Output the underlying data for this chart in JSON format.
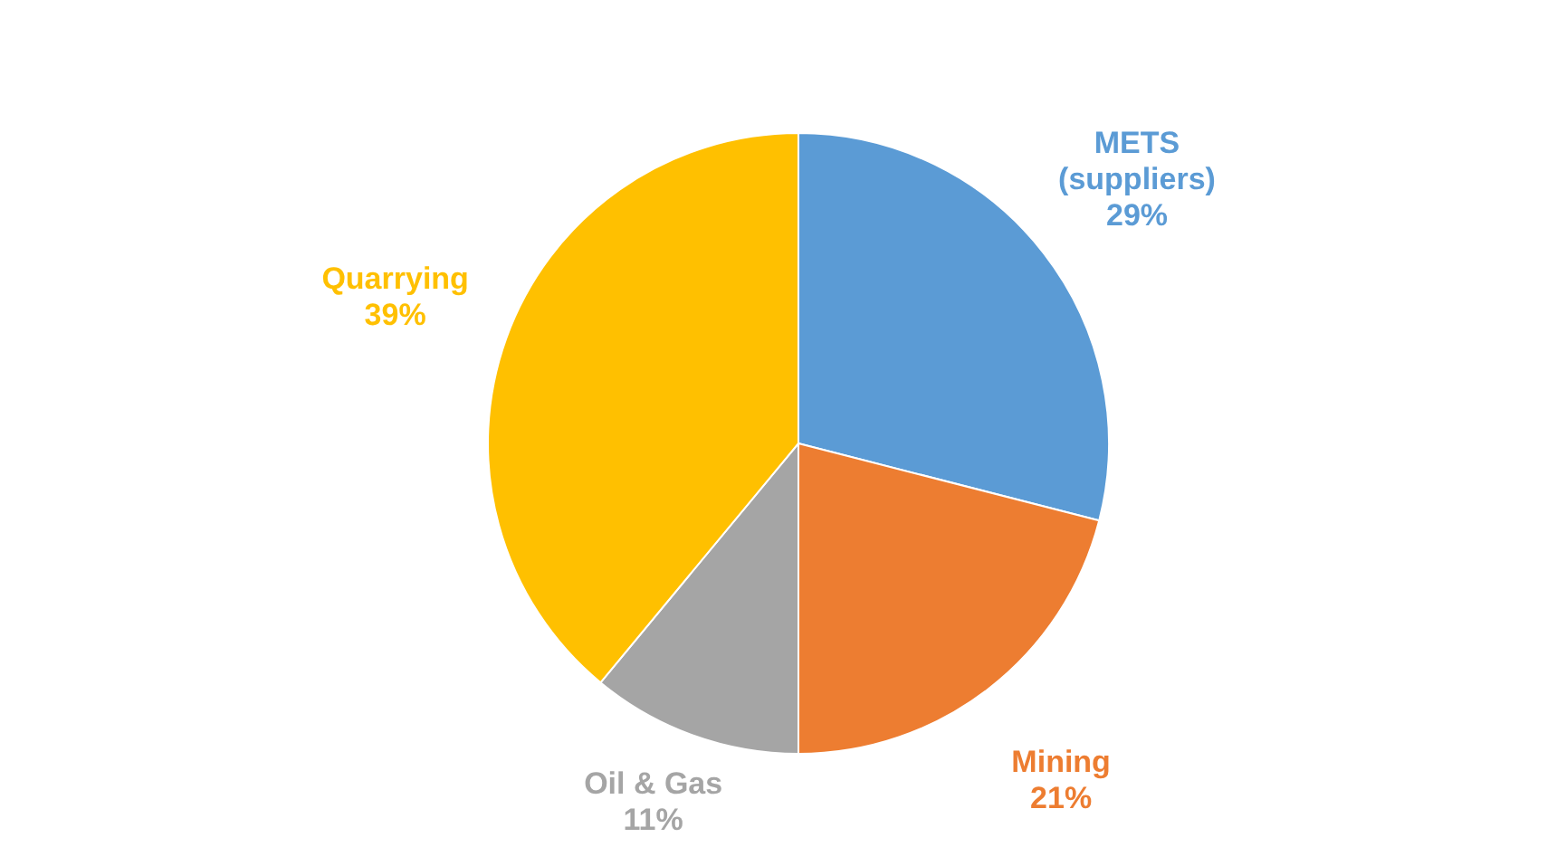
{
  "chart_data": {
    "type": "pie",
    "categories": [
      "METS (suppliers)",
      "Mining",
      "Oil & Gas",
      "Quarrying"
    ],
    "values": [
      29,
      21,
      11,
      39
    ],
    "colors": [
      "#5b9bd5",
      "#ed7d31",
      "#a5a5a5",
      "#ffc000"
    ],
    "value_labels": [
      "29%",
      "21%",
      "11%",
      "39%"
    ],
    "legend": false
  }
}
